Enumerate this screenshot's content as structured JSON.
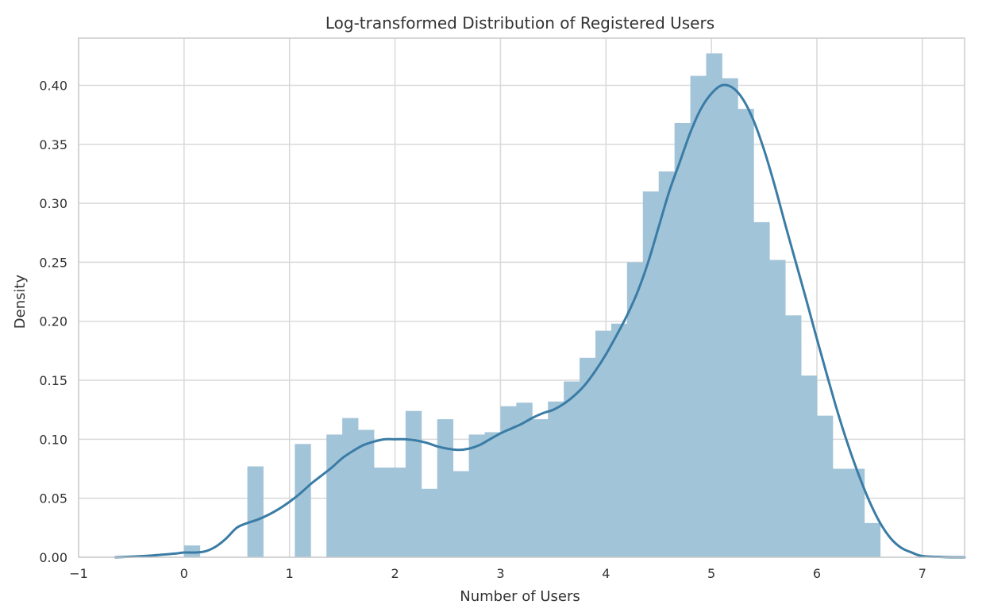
{
  "chart_data": {
    "type": "bar",
    "title": "Log-transformed Distribution of Registered Users",
    "xlabel": "Number of Users",
    "ylabel": "Density",
    "xlim": [
      -1,
      7.4
    ],
    "ylim": [
      0,
      0.44
    ],
    "xticks": [
      "−1",
      "0",
      "1",
      "2",
      "3",
      "4",
      "5",
      "6",
      "7"
    ],
    "yticks": [
      "0.00",
      "0.05",
      "0.10",
      "0.15",
      "0.20",
      "0.25",
      "0.30",
      "0.35",
      "0.40"
    ],
    "grid": true,
    "colors": {
      "bars": "#a1c4d8",
      "kde": "#3a7ca5",
      "grid": "#d9d9d9",
      "frame": "#cccccc"
    },
    "histogram": {
      "bin_edges": [
        0.0,
        0.15,
        0.3,
        0.45,
        0.6,
        0.75,
        0.9,
        1.05,
        1.2,
        1.35,
        1.5,
        1.65,
        1.8,
        1.95,
        2.1,
        2.25,
        2.4,
        2.55,
        2.7,
        2.85,
        3.0,
        3.15,
        3.3,
        3.45,
        3.6,
        3.75,
        3.9,
        4.05,
        4.2,
        4.35,
        4.5,
        4.65,
        4.8,
        4.95,
        5.1,
        5.25,
        5.4,
        5.55,
        5.7,
        5.85,
        6.0,
        6.15,
        6.3,
        6.45,
        6.6,
        6.75
      ],
      "densities": [
        0.01,
        0.0,
        0.0,
        0.0,
        0.077,
        0.0,
        0.0,
        0.096,
        0.0,
        0.104,
        0.118,
        0.108,
        0.076,
        0.076,
        0.124,
        0.058,
        0.117,
        0.073,
        0.104,
        0.106,
        0.128,
        0.131,
        0.117,
        0.132,
        0.149,
        0.169,
        0.192,
        0.198,
        0.25,
        0.31,
        0.327,
        0.368,
        0.408,
        0.427,
        0.406,
        0.38,
        0.284,
        0.252,
        0.205,
        0.154,
        0.12,
        0.075,
        0.075,
        0.029,
        0.0
      ]
    },
    "kde": {
      "x": [
        -0.65,
        -0.5,
        -0.3,
        -0.1,
        0.0,
        0.1,
        0.2,
        0.3,
        0.4,
        0.5,
        0.6,
        0.7,
        0.8,
        0.9,
        1.0,
        1.1,
        1.2,
        1.3,
        1.4,
        1.5,
        1.6,
        1.7,
        1.8,
        1.9,
        2.0,
        2.1,
        2.2,
        2.3,
        2.4,
        2.5,
        2.6,
        2.7,
        2.8,
        2.9,
        3.0,
        3.1,
        3.2,
        3.3,
        3.4,
        3.5,
        3.6,
        3.7,
        3.8,
        3.9,
        4.0,
        4.1,
        4.2,
        4.3,
        4.4,
        4.5,
        4.6,
        4.7,
        4.8,
        4.9,
        5.0,
        5.1,
        5.2,
        5.3,
        5.4,
        5.5,
        5.6,
        5.7,
        5.8,
        5.9,
        6.0,
        6.1,
        6.2,
        6.3,
        6.4,
        6.5,
        6.6,
        6.7,
        6.8,
        6.9,
        7.0,
        7.2,
        7.4
      ],
      "y": [
        0.0,
        0.0005,
        0.0015,
        0.003,
        0.004,
        0.004,
        0.005,
        0.009,
        0.016,
        0.025,
        0.029,
        0.032,
        0.036,
        0.041,
        0.047,
        0.054,
        0.062,
        0.069,
        0.076,
        0.084,
        0.09,
        0.095,
        0.098,
        0.1,
        0.1,
        0.1,
        0.099,
        0.097,
        0.094,
        0.092,
        0.091,
        0.092,
        0.095,
        0.1,
        0.105,
        0.109,
        0.113,
        0.118,
        0.122,
        0.125,
        0.13,
        0.137,
        0.146,
        0.158,
        0.172,
        0.188,
        0.205,
        0.225,
        0.25,
        0.28,
        0.31,
        0.335,
        0.36,
        0.38,
        0.393,
        0.4,
        0.398,
        0.388,
        0.37,
        0.345,
        0.315,
        0.282,
        0.25,
        0.218,
        0.185,
        0.153,
        0.122,
        0.094,
        0.069,
        0.047,
        0.029,
        0.016,
        0.008,
        0.004,
        0.001,
        0.0002,
        0.0
      ]
    }
  }
}
